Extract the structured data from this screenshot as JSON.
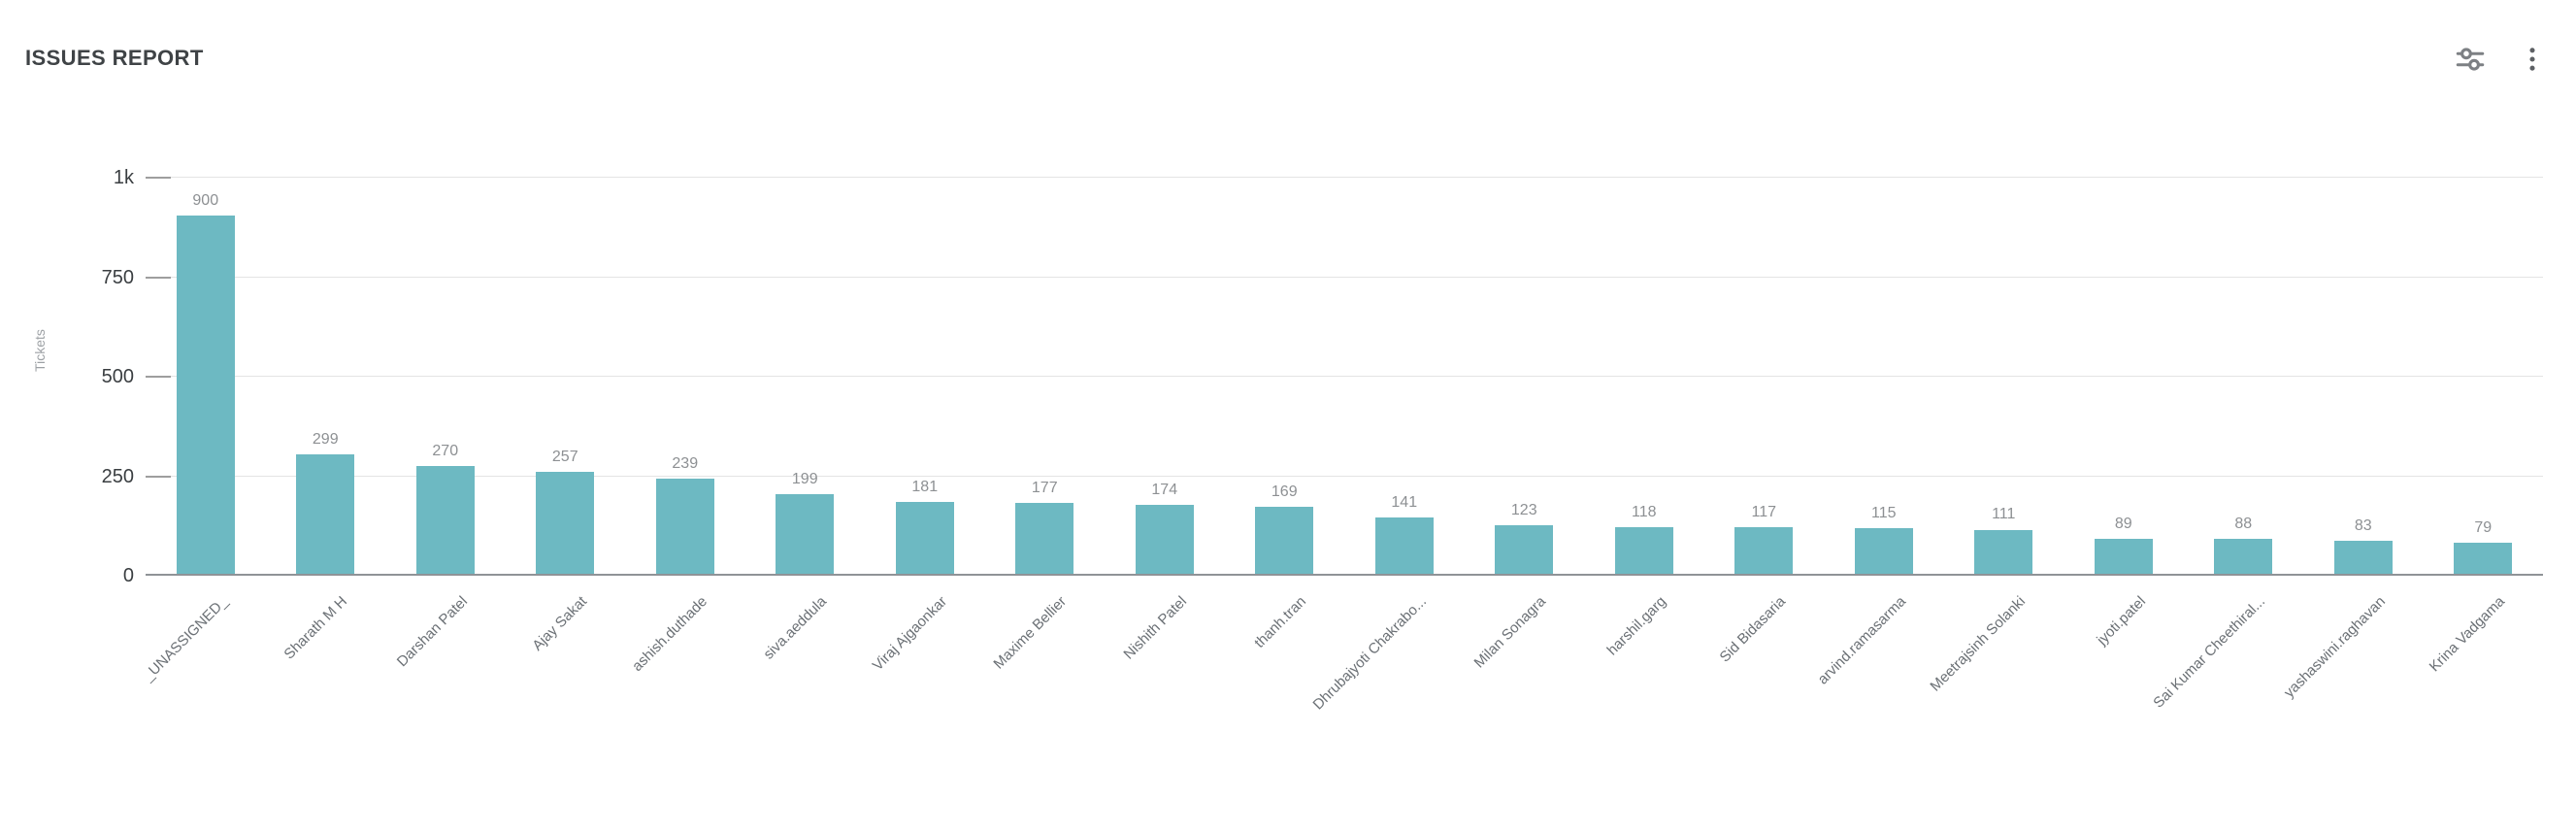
{
  "header": {
    "title": "ISSUES REPORT"
  },
  "toolbar": {
    "filter_icon": "sliders-icon",
    "menu_icon": "kebab-menu-icon"
  },
  "colors": {
    "bar": "#6db9c2",
    "gridline": "#e4e4e4",
    "baseline": "#8f9397",
    "title_text": "#3f4346",
    "y_tick_text": "#3a3e41",
    "value_label_text": "#8d9093",
    "category_text": "#6b7075",
    "axis_title_text": "#9da1a5",
    "icon": "#7d8084"
  },
  "chart_data": {
    "type": "bar",
    "title": "ISSUES REPORT",
    "xlabel": "",
    "ylabel": "Tickets",
    "ylim": [
      0,
      1000
    ],
    "grid": true,
    "legend": false,
    "bar_color": "#6db9c2",
    "y_ticks": [
      {
        "label": "1k",
        "value": 1000
      },
      {
        "label": "750",
        "value": 750
      },
      {
        "label": "500",
        "value": 500
      },
      {
        "label": "250",
        "value": 250
      },
      {
        "label": "0",
        "value": 0
      }
    ],
    "categories": [
      "_UNASSIGNED_",
      "Sharath M H",
      "Darshan Patel",
      "Ajay Sakat",
      "ashish.duthade",
      "siva.aeddula",
      "Viraj Ajgaonkar",
      "Maxime Bellier",
      "Nishith Patel",
      "thanh.tran",
      "Dhrubajyoti Chakrabo...",
      "Milan Sonagra",
      "harshil.garg",
      "Sid Bidasaria",
      "arvind.ramasarma",
      "Meetrajsinh Solanki",
      "jyoti.patel",
      "Sai Kumar Cheethiral...",
      "yashaswini.raghavan",
      "Krina Vadgama"
    ],
    "values": [
      900,
      299,
      270,
      257,
      239,
      199,
      181,
      177,
      174,
      169,
      141,
      123,
      118,
      117,
      115,
      111,
      89,
      88,
      83,
      79
    ]
  }
}
